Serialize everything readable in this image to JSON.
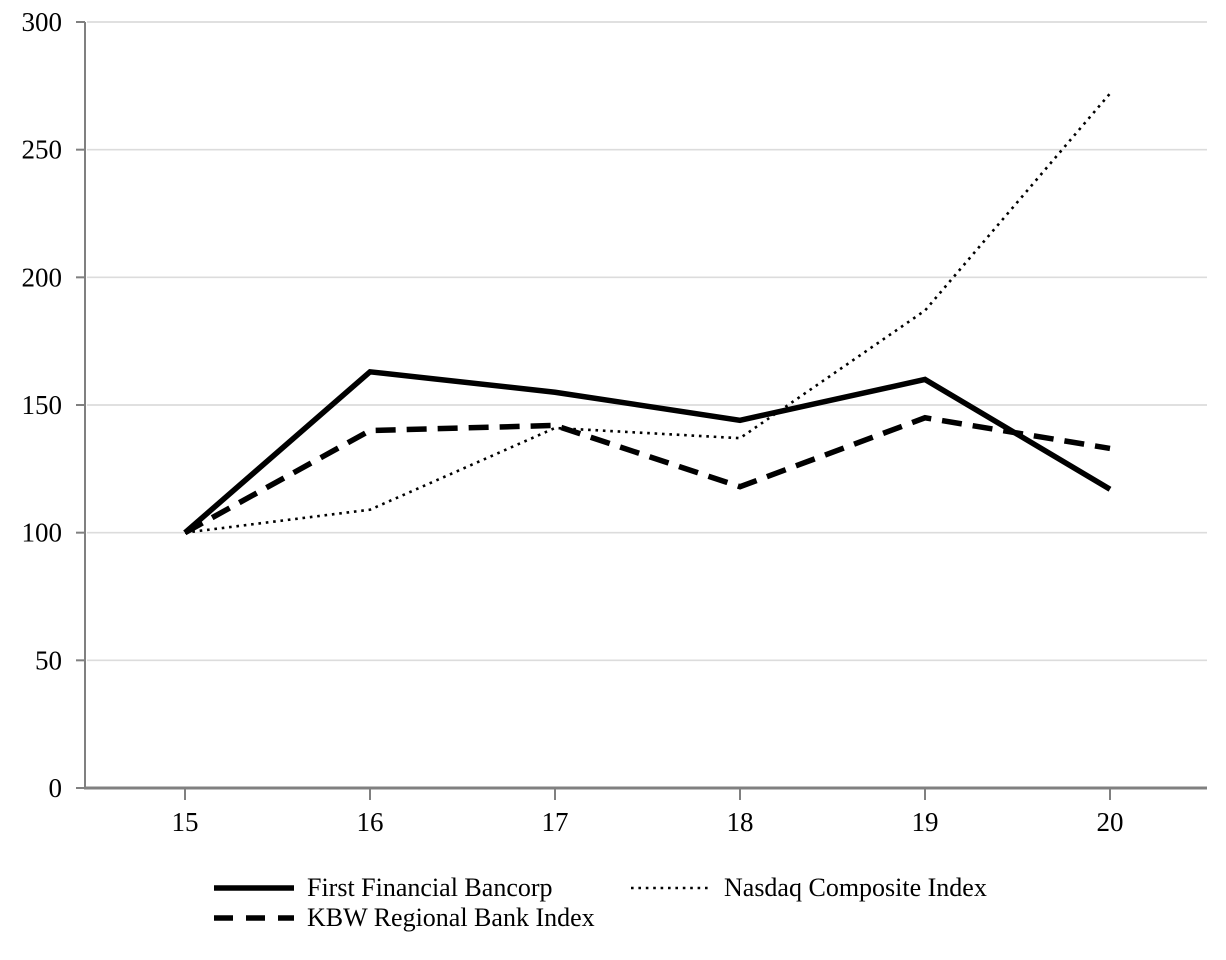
{
  "chart_data": {
    "type": "line",
    "title": "",
    "xlabel": "",
    "ylabel": "",
    "x": [
      "15",
      "16",
      "17",
      "18",
      "19",
      "20"
    ],
    "series": [
      {
        "name": "First Financial Bancorp",
        "style": "solid",
        "values": [
          100,
          163,
          155,
          144,
          160,
          117
        ]
      },
      {
        "name": "KBW Regional Bank Index",
        "style": "dashed",
        "values": [
          100,
          140,
          142,
          118,
          145,
          133
        ]
      },
      {
        "name": "Nasdaq Composite Index",
        "style": "dotted",
        "values": [
          100,
          109,
          141,
          137,
          187,
          272
        ]
      }
    ],
    "ylim": [
      0,
      300
    ],
    "ytick_step": 50,
    "yticks": [
      "0",
      "50",
      "100",
      "150",
      "200",
      "250",
      "300"
    ],
    "grid": true,
    "legend_position": "bottom",
    "colors": {
      "line": "#000000",
      "axis": "#808080",
      "grid": "#dcdcdc",
      "text": "#000000"
    }
  }
}
